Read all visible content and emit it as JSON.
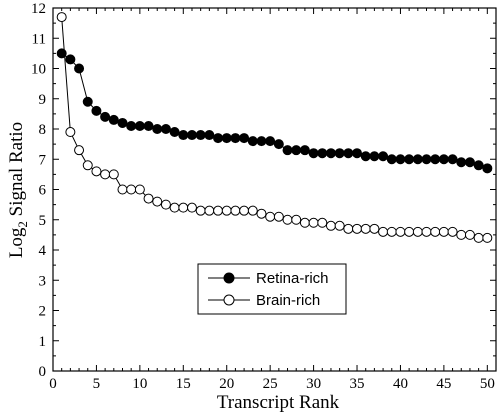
{
  "chart_data": {
    "type": "line",
    "xlabel": "Transcript Rank",
    "ylabel": {
      "base": "Log",
      "subscript": "2",
      "rest": " Signal Ratio"
    },
    "xlim": [
      0,
      51
    ],
    "ylim": [
      0,
      12
    ],
    "xticks": [
      0,
      5,
      10,
      15,
      20,
      25,
      30,
      35,
      40,
      45,
      50
    ],
    "yticks": [
      0,
      1,
      2,
      3,
      4,
      5,
      6,
      7,
      8,
      9,
      10,
      11,
      12
    ],
    "grid": false,
    "legend_position": "center-left",
    "x": [
      1,
      2,
      3,
      4,
      5,
      6,
      7,
      8,
      9,
      10,
      11,
      12,
      13,
      14,
      15,
      16,
      17,
      18,
      19,
      20,
      21,
      22,
      23,
      24,
      25,
      26,
      27,
      28,
      29,
      30,
      31,
      32,
      33,
      34,
      35,
      36,
      37,
      38,
      39,
      40,
      41,
      42,
      43,
      44,
      45,
      46,
      47,
      48,
      49,
      50
    ],
    "series": [
      {
        "name": "Retina-rich",
        "marker": "filled-circle",
        "color": "#000000",
        "values": [
          10.5,
          10.3,
          10.0,
          8.9,
          8.6,
          8.4,
          8.3,
          8.2,
          8.1,
          8.1,
          8.1,
          8.0,
          8.0,
          7.9,
          7.8,
          7.8,
          7.8,
          7.8,
          7.7,
          7.7,
          7.7,
          7.7,
          7.6,
          7.6,
          7.6,
          7.5,
          7.3,
          7.3,
          7.3,
          7.2,
          7.2,
          7.2,
          7.2,
          7.2,
          7.2,
          7.1,
          7.1,
          7.1,
          7.0,
          7.0,
          7.0,
          7.0,
          7.0,
          7.0,
          7.0,
          7.0,
          6.9,
          6.9,
          6.8,
          6.7
        ]
      },
      {
        "name": "Brain-rich",
        "marker": "open-circle",
        "color": "#000000",
        "values": [
          11.7,
          7.9,
          7.3,
          6.8,
          6.6,
          6.5,
          6.5,
          6.0,
          6.0,
          6.0,
          5.7,
          5.6,
          5.5,
          5.4,
          5.4,
          5.4,
          5.3,
          5.3,
          5.3,
          5.3,
          5.3,
          5.3,
          5.3,
          5.2,
          5.1,
          5.1,
          5.0,
          5.0,
          4.9,
          4.9,
          4.9,
          4.8,
          4.8,
          4.7,
          4.7,
          4.7,
          4.7,
          4.6,
          4.6,
          4.6,
          4.6,
          4.6,
          4.6,
          4.6,
          4.6,
          4.6,
          4.5,
          4.5,
          4.4,
          4.4
        ]
      }
    ]
  }
}
